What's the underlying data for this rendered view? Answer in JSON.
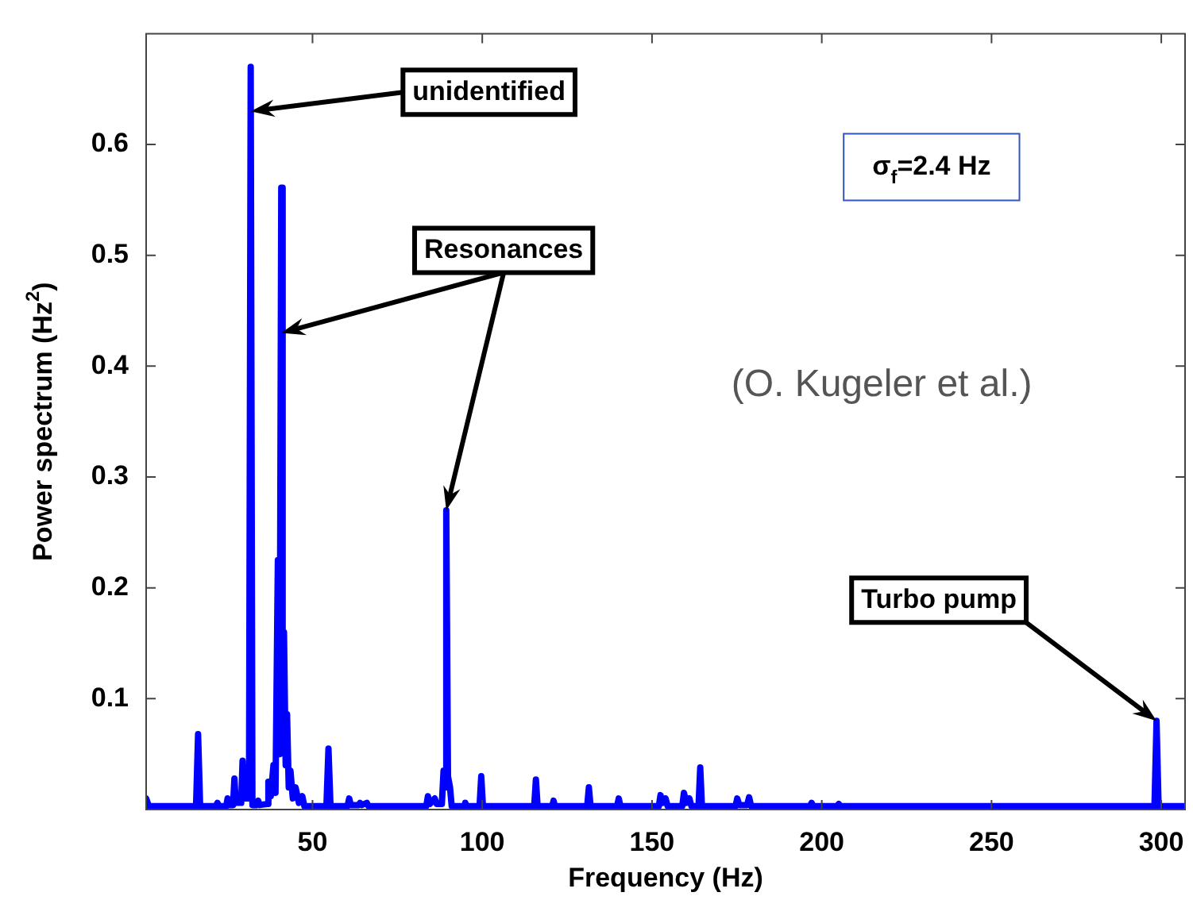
{
  "chart_data": {
    "type": "line",
    "xlabel": "Frequency (Hz)",
    "ylabel": "Power spectrum (Hz$^{2}$)",
    "color": "#0000ff",
    "xlim": [
      1,
      307
    ],
    "ylim": [
      0,
      0.7
    ],
    "xticks": [
      50,
      100,
      150,
      200,
      250,
      300
    ],
    "yticks": [
      0.1,
      0.2,
      0.3,
      0.4,
      0.5,
      0.6
    ],
    "x": [
      1,
      1.8,
      15.7,
      16.3,
      16.9,
      21.5,
      22,
      22.5,
      24.6,
      25,
      25.4,
      26.6,
      27,
      27.4,
      29,
      29.4,
      29.8,
      31.3,
      31.8,
      32.3,
      33.6,
      34,
      34.4,
      36.6,
      37,
      37.7,
      38.5,
      39.1,
      39.8,
      40.3,
      40.8,
      41.2,
      41.6,
      42.1,
      42.5,
      43,
      43.5,
      44.2,
      45,
      46,
      47,
      47.6,
      54.1,
      54.7,
      55.3,
      60.3,
      60.8,
      61.3,
      63.6,
      64,
      64.5,
      66,
      66.5,
      83.5,
      84,
      84.6,
      86,
      86.6,
      88.1,
      88.6,
      89,
      89.4,
      89.9,
      90.5,
      91,
      94.6,
      95,
      95.4,
      99.2,
      99.7,
      100.2,
      115.3,
      115.8,
      116.3,
      120.6,
      121,
      121.4,
      130.9,
      131.4,
      131.9,
      139.7,
      140.2,
      140.7,
      152,
      152.5,
      153.1,
      154,
      154.6,
      158.9,
      159.4,
      160.1,
      161,
      161.6,
      163.7,
      164.2,
      164.7,
      174.6,
      175.1,
      175.7,
      178,
      178.6,
      179.2,
      196.5,
      197,
      197.5,
      204.5,
      205,
      205.5,
      298,
      298.6,
      299.2,
      307
    ],
    "values": [
      0.01,
      0.003,
      0.003,
      0.068,
      0.003,
      0.003,
      0.006,
      0.003,
      0.003,
      0.01,
      0.004,
      0.004,
      0.028,
      0.006,
      0.006,
      0.044,
      0.01,
      0.01,
      0.67,
      0.004,
      0.004,
      0.008,
      0.004,
      0.005,
      0.025,
      0.012,
      0.04,
      0.015,
      0.225,
      0.05,
      0.561,
      0.06,
      0.16,
      0.04,
      0.086,
      0.02,
      0.035,
      0.01,
      0.02,
      0.006,
      0.012,
      0.003,
      0.003,
      0.055,
      0.003,
      0.003,
      0.01,
      0.004,
      0.004,
      0.006,
      0.004,
      0.006,
      0.003,
      0.003,
      0.012,
      0.005,
      0.01,
      0.005,
      0.005,
      0.035,
      0.02,
      0.27,
      0.03,
      0.02,
      0.003,
      0.003,
      0.006,
      0.003,
      0.003,
      0.03,
      0.003,
      0.003,
      0.027,
      0.003,
      0.003,
      0.008,
      0.003,
      0.003,
      0.02,
      0.003,
      0.003,
      0.01,
      0.003,
      0.003,
      0.013,
      0.006,
      0.01,
      0.003,
      0.003,
      0.015,
      0.006,
      0.01,
      0.003,
      0.003,
      0.038,
      0.003,
      0.003,
      0.01,
      0.004,
      0.004,
      0.011,
      0.003,
      0.003,
      0.006,
      0.003,
      0.003,
      0.005,
      0.003,
      0.003,
      0.08,
      0.003,
      0.003
    ],
    "annotations": [
      {
        "text": "unidentified",
        "x": 31.8,
        "y": 0.63
      },
      {
        "text": "Resonances",
        "x": 40.8,
        "y": 0.43
      },
      {
        "text": "Turbo pump",
        "x": 298.6,
        "y": 0.08
      },
      "σ$_{f}$=2.4 Hz",
      "(O. Kugeler et al.)"
    ]
  }
}
